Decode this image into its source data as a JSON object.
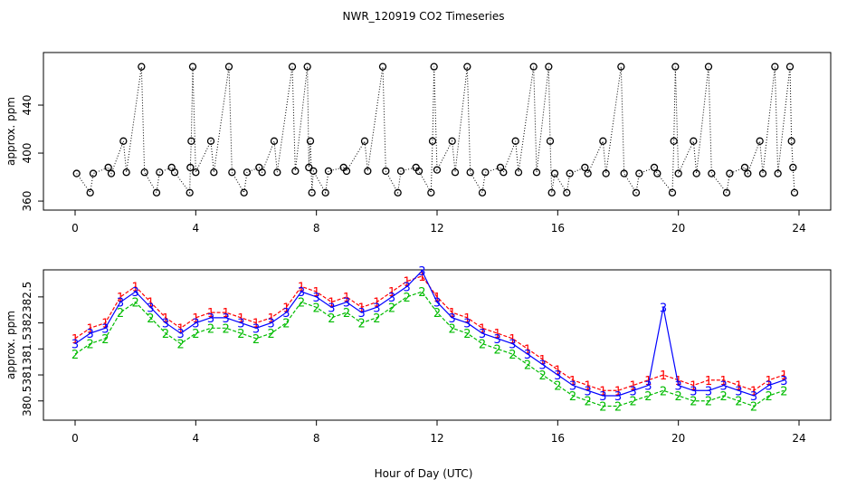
{
  "chart_data": [
    {
      "type": "scatter",
      "title": "NWR_120919  CO2 Timeseries",
      "y_label": "approx. ppm",
      "color": "#000000",
      "line_color": "#000000",
      "xlim": [
        -1.05,
        25.05
      ],
      "xticks": [
        0,
        4,
        8,
        12,
        16,
        20,
        24
      ],
      "ylim": [
        352.5,
        483.8
      ],
      "yticks": [
        360,
        400,
        440
      ],
      "x": [
        0.05,
        0.5,
        0.6,
        1.1,
        1.2,
        1.6,
        1.7,
        2.2,
        2.3,
        2.7,
        2.8,
        3.2,
        3.3,
        3.8,
        3.82,
        3.85,
        3.9,
        4.0,
        4.5,
        4.6,
        5.1,
        5.2,
        5.6,
        5.7,
        6.1,
        6.2,
        6.6,
        6.7,
        7.2,
        7.3,
        7.7,
        7.75,
        7.8,
        7.85,
        7.9,
        8.3,
        8.4,
        8.9,
        9.0,
        9.6,
        9.7,
        10.2,
        10.3,
        10.7,
        10.8,
        11.3,
        11.4,
        11.8,
        11.85,
        11.9,
        12.0,
        12.5,
        12.6,
        13.0,
        13.1,
        13.5,
        13.6,
        14.1,
        14.2,
        14.6,
        14.7,
        15.2,
        15.3,
        15.7,
        15.75,
        15.8,
        15.9,
        16.3,
        16.4,
        16.9,
        17.0,
        17.5,
        17.6,
        18.1,
        18.2,
        18.6,
        18.7,
        19.2,
        19.3,
        19.8,
        19.85,
        19.9,
        20.0,
        20.5,
        20.6,
        21.0,
        21.1,
        21.6,
        21.7,
        22.2,
        22.3,
        22.7,
        22.8,
        23.2,
        23.3,
        23.7,
        23.75,
        23.8,
        23.85
      ],
      "values": [
        383,
        367,
        383,
        388,
        383,
        410,
        384,
        472,
        384,
        367,
        384,
        388,
        384,
        367,
        388,
        410,
        472,
        384,
        410,
        384,
        472,
        384,
        367,
        384,
        388,
        384,
        410,
        384,
        472,
        385,
        472,
        388,
        410,
        367,
        385,
        367,
        385,
        388,
        385,
        410,
        385,
        472,
        385,
        367,
        385,
        388,
        385,
        367,
        410,
        472,
        386,
        410,
        384,
        472,
        384,
        367,
        384,
        388,
        384,
        410,
        384,
        472,
        384,
        472,
        410,
        367,
        383,
        367,
        383,
        388,
        383,
        410,
        383,
        472,
        383,
        367,
        383,
        388,
        383,
        367,
        410,
        472,
        383,
        410,
        383,
        472,
        383,
        367,
        383,
        388,
        383,
        410,
        383,
        472,
        383,
        472,
        410,
        388,
        367
      ]
    },
    {
      "type": "line",
      "x_label": "Hour of Day (UTC)",
      "y_label": "approx. ppm",
      "xlim": [
        -1.05,
        25.05
      ],
      "xticks": [
        0,
        4,
        8,
        12,
        16,
        20,
        24
      ],
      "ylim": [
        380.13,
        383.02
      ],
      "yticks": [
        380.5,
        381,
        381.5,
        382,
        382.5
      ],
      "x": [
        0,
        0.5,
        1,
        1.5,
        2,
        2.5,
        3,
        3.5,
        4,
        4.5,
        5,
        5.5,
        6,
        6.5,
        7,
        7.5,
        8,
        8.5,
        9,
        9.5,
        10,
        10.5,
        11,
        11.5,
        12,
        12.5,
        13,
        13.5,
        14,
        14.5,
        15,
        15.5,
        16,
        16.5,
        17,
        17.5,
        18,
        18.5,
        19,
        19.5,
        20,
        20.5,
        21,
        21.5,
        22,
        22.5,
        23,
        23.5
      ],
      "series": [
        {
          "marker": "1",
          "color": "#ff0000",
          "values": [
            381.7,
            381.9,
            382.0,
            382.5,
            382.7,
            382.4,
            382.1,
            381.9,
            382.1,
            382.2,
            382.2,
            382.1,
            382.0,
            382.1,
            382.3,
            382.7,
            382.6,
            382.4,
            382.5,
            382.3,
            382.4,
            382.6,
            382.8,
            382.9,
            382.5,
            382.2,
            382.1,
            381.9,
            381.8,
            381.7,
            381.5,
            381.3,
            381.1,
            380.9,
            380.8,
            380.7,
            380.7,
            380.8,
            380.9,
            381.0,
            380.9,
            380.8,
            380.9,
            380.9,
            380.8,
            380.7,
            380.9,
            381.0
          ]
        },
        {
          "marker": "2",
          "color": "#00bb00",
          "values": [
            381.4,
            381.6,
            381.7,
            382.2,
            382.4,
            382.1,
            381.8,
            381.6,
            381.8,
            381.9,
            381.9,
            381.8,
            381.7,
            381.8,
            382.0,
            382.4,
            382.3,
            382.1,
            382.2,
            382.0,
            382.1,
            382.3,
            382.5,
            382.6,
            382.2,
            381.9,
            381.8,
            381.6,
            381.5,
            381.4,
            381.2,
            381.0,
            380.8,
            380.6,
            380.5,
            380.4,
            380.4,
            380.5,
            380.6,
            380.7,
            380.6,
            380.5,
            380.5,
            380.6,
            380.5,
            380.4,
            380.6,
            380.7
          ]
        },
        {
          "marker": "3",
          "color": "#0000ff",
          "values": [
            381.6,
            381.8,
            381.9,
            382.4,
            382.6,
            382.3,
            382.0,
            381.8,
            382.0,
            382.1,
            382.1,
            382.0,
            381.9,
            382.0,
            382.2,
            382.6,
            382.5,
            382.3,
            382.4,
            382.2,
            382.3,
            382.5,
            382.7,
            383.0,
            382.4,
            382.1,
            382.0,
            381.8,
            381.7,
            381.6,
            381.4,
            381.2,
            381.0,
            380.8,
            380.7,
            380.6,
            380.6,
            380.7,
            380.8,
            382.3,
            380.8,
            380.7,
            380.7,
            380.8,
            380.7,
            380.6,
            380.8,
            380.9
          ]
        }
      ]
    }
  ]
}
